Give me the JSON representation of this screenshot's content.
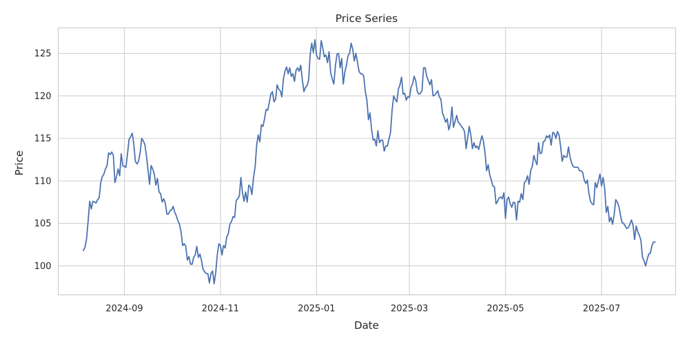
{
  "chart_data": {
    "type": "line",
    "title": "Price Series",
    "xlabel": "Date",
    "ylabel": "Price",
    "x_range": [
      "2024-07-21",
      "2025-08-17"
    ],
    "ylim": [
      96.6,
      128.0
    ],
    "grid": true,
    "x_ticks": [
      {
        "date": "2024-09-01",
        "label": "2024-09"
      },
      {
        "date": "2024-11-01",
        "label": "2024-11"
      },
      {
        "date": "2025-01-01",
        "label": "2025-01"
      },
      {
        "date": "2025-03-01",
        "label": "2025-03"
      },
      {
        "date": "2025-05-01",
        "label": "2025-05"
      },
      {
        "date": "2025-07-01",
        "label": "2025-07"
      }
    ],
    "y_ticks": [
      100,
      105,
      110,
      115,
      120,
      125
    ],
    "colors": {
      "line": "#4c72b0",
      "grid": "#d0d0d0",
      "frame": "#cccccc"
    },
    "series": [
      {
        "start_date": "2024-08-06",
        "values": [
          101.8,
          102.2,
          103.2,
          105.3,
          107.6,
          106.7,
          107.6,
          107.5,
          107.4,
          107.8,
          108.0,
          109.8,
          110.5,
          110.8,
          111.4,
          111.8,
          113.3,
          113.1,
          113.4,
          113.0,
          109.8,
          110.5,
          111.4,
          110.6,
          113.2,
          111.8,
          111.7,
          111.6,
          113.2,
          114.9,
          115.2,
          115.6,
          114.3,
          112.3,
          112.0,
          112.3,
          113.3,
          115.0,
          114.7,
          114.3,
          113.0,
          111.3,
          109.6,
          111.8,
          111.4,
          110.8,
          109.5,
          110.3,
          108.7,
          108.5,
          107.5,
          107.9,
          107.4,
          106.1,
          106.1,
          106.5,
          106.6,
          107.0,
          106.3,
          105.9,
          105.3,
          104.9,
          104.0,
          102.4,
          102.6,
          102.3,
          100.7,
          101.1,
          100.2,
          100.2,
          101.0,
          101.3,
          102.3,
          101.0,
          101.4,
          100.6,
          99.6,
          99.3,
          99.1,
          99.1,
          98.0,
          99.1,
          99.4,
          97.9,
          99.2,
          101.3,
          102.6,
          102.4,
          101.3,
          102.4,
          102.1,
          103.4,
          103.8,
          104.9,
          105.2,
          105.8,
          105.7,
          107.7,
          107.9,
          108.2,
          110.4,
          108.6,
          107.6,
          108.7,
          107.5,
          109.5,
          109.3,
          108.4,
          110.4,
          111.6,
          114.2,
          115.4,
          114.6,
          116.6,
          116.4,
          117.3,
          118.4,
          118.3,
          119.2,
          120.2,
          120.5,
          119.3,
          119.6,
          121.3,
          120.8,
          120.6,
          119.9,
          122.0,
          122.9,
          123.4,
          122.6,
          123.3,
          122.3,
          122.6,
          121.7,
          123.0,
          123.3,
          122.9,
          123.6,
          121.9,
          120.5,
          121.0,
          121.2,
          121.9,
          124.9,
          126.2,
          125.1,
          126.6,
          124.8,
          124.4,
          124.3,
          126.5,
          125.6,
          124.6,
          124.8,
          123.9,
          125.2,
          122.7,
          122.0,
          121.4,
          123.5,
          124.9,
          125.0,
          123.3,
          124.4,
          121.4,
          122.8,
          123.6,
          124.7,
          125.0,
          126.2,
          125.5,
          124.1,
          125.0,
          124.0,
          122.9,
          122.6,
          122.6,
          122.3,
          120.5,
          119.5,
          117.2,
          118.0,
          116.0,
          114.8,
          114.9,
          114.1,
          115.9,
          114.5,
          114.8,
          114.8,
          113.5,
          114.1,
          114.1,
          114.9,
          115.7,
          118.3,
          120.0,
          119.6,
          119.3,
          120.8,
          121.3,
          122.2,
          120.2,
          120.3,
          119.5,
          119.9,
          119.8,
          121.0,
          121.4,
          122.3,
          121.8,
          120.5,
          120.2,
          120.3,
          120.6,
          123.3,
          123.3,
          122.3,
          121.8,
          121.3,
          121.9,
          120.0,
          120.1,
          120.3,
          120.6,
          119.9,
          119.6,
          118.0,
          117.5,
          116.9,
          117.3,
          116.0,
          116.7,
          118.7,
          116.3,
          117.0,
          117.7,
          116.9,
          116.7,
          116.4,
          116.2,
          115.8,
          113.8,
          115.1,
          116.4,
          115.4,
          113.8,
          114.5,
          113.9,
          114.1,
          113.7,
          114.5,
          115.3,
          114.7,
          113.3,
          111.2,
          111.9,
          110.7,
          110.1,
          109.4,
          109.3,
          107.3,
          107.6,
          108.0,
          108.1,
          107.9,
          108.6,
          105.6,
          107.8,
          108.1,
          107.3,
          106.9,
          107.5,
          107.4,
          105.4,
          107.6,
          107.5,
          108.5,
          107.8,
          109.8,
          110.0,
          110.6,
          109.6,
          111.2,
          111.7,
          113.0,
          112.4,
          111.9,
          114.5,
          113.2,
          113.3,
          114.6,
          114.7,
          115.3,
          115.1,
          115.4,
          114.2,
          115.7,
          115.6,
          115.0,
          115.8,
          115.4,
          114.1,
          112.3,
          113.0,
          112.8,
          112.8,
          114.0,
          112.8,
          112.1,
          111.7,
          111.6,
          111.6,
          111.6,
          111.2,
          111.2,
          111.0,
          110.1,
          109.7,
          110.1,
          108.5,
          107.6,
          107.3,
          107.2,
          109.8,
          109.2,
          110.0,
          110.8,
          109.4,
          110.4,
          109.1,
          106.3,
          107.0,
          105.2,
          105.7,
          104.9,
          106.0,
          107.8,
          107.5,
          107.0,
          106.0,
          105.1,
          105.0,
          104.7,
          104.4,
          104.5,
          104.9,
          105.4,
          104.8,
          103.1,
          104.7,
          104.0,
          103.6,
          103.0,
          101.0,
          100.6,
          100.0,
          100.8,
          101.4,
          101.5,
          102.4,
          102.8,
          102.8
        ]
      }
    ]
  }
}
